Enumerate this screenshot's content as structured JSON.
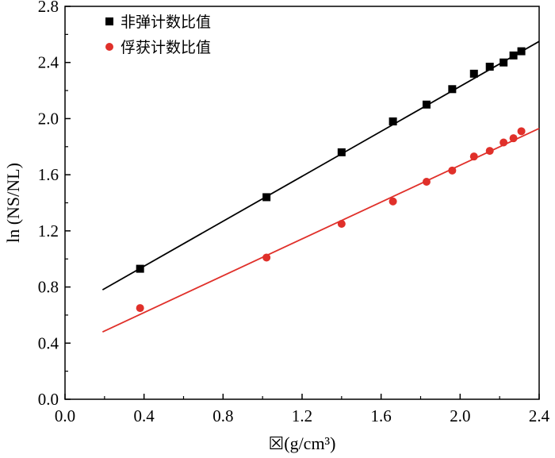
{
  "chart_data": {
    "type": "scatter",
    "xlabel": "☒(g/cm³)",
    "ylabel": "ln (NS/NL)",
    "xlim": [
      0.0,
      2.4
    ],
    "ylim": [
      0.0,
      2.8
    ],
    "xticks": [
      "0.0",
      "0.4",
      "0.8",
      "1.2",
      "1.6",
      "2.0",
      "2.4"
    ],
    "yticks": [
      "0.0",
      "0.4",
      "0.8",
      "1.2",
      "1.6",
      "2.0",
      "2.4",
      "2.8"
    ],
    "grid": false,
    "legend_position": "top-left",
    "series": [
      {
        "name": "非弹计数比值",
        "color": "#000000",
        "marker": "square",
        "x": [
          0.38,
          1.02,
          1.4,
          1.66,
          1.83,
          1.96,
          2.07,
          2.15,
          2.22,
          2.27,
          2.31
        ],
        "y": [
          0.93,
          1.44,
          1.76,
          1.98,
          2.1,
          2.21,
          2.32,
          2.37,
          2.4,
          2.45,
          2.48
        ],
        "fit_line": {
          "x": [
            0.19,
            2.4
          ],
          "y": [
            0.78,
            2.55
          ]
        }
      },
      {
        "name": "俘获计数比值",
        "color": "#e0302a",
        "marker": "circle",
        "x": [
          0.38,
          1.02,
          1.4,
          1.66,
          1.83,
          1.96,
          2.07,
          2.15,
          2.22,
          2.27,
          2.31
        ],
        "y": [
          0.65,
          1.01,
          1.25,
          1.41,
          1.55,
          1.63,
          1.73,
          1.77,
          1.83,
          1.86,
          1.91
        ],
        "fit_line": {
          "x": [
            0.19,
            2.4
          ],
          "y": [
            0.48,
            1.93
          ]
        }
      }
    ]
  }
}
